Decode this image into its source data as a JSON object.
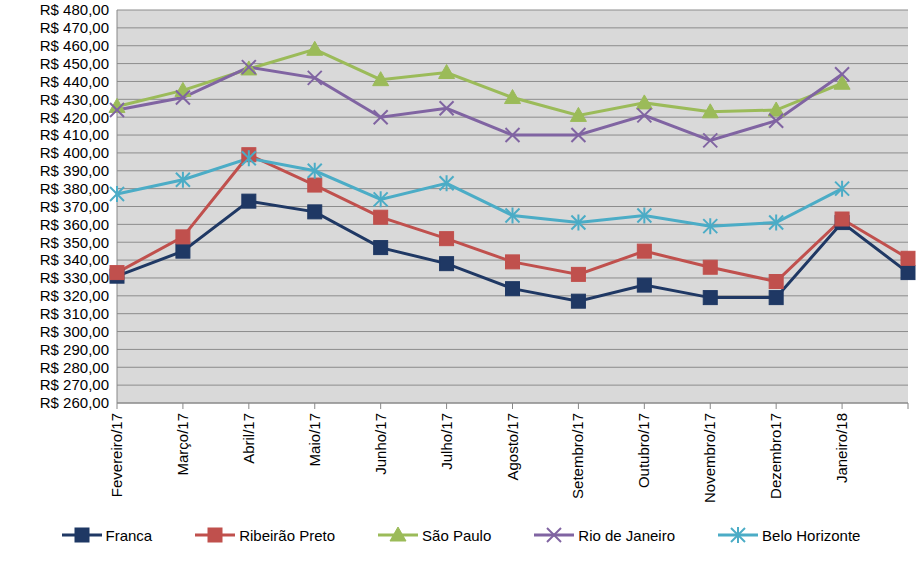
{
  "chart_data": {
    "type": "line",
    "categories": [
      "Fevereiro/17",
      "Março/17",
      "Abril/17",
      "Maio/17",
      "Junho/17",
      "Julho/17",
      "Agosto/17",
      "Setembro/17",
      "Outubro/17",
      "Novembro/17",
      "Dezembro17",
      "Janeiro/18",
      null
    ],
    "series": [
      {
        "name": "Franca",
        "color": "#1f3864",
        "marker": "square",
        "values": [
          331,
          345,
          373,
          367,
          347,
          338,
          324,
          317,
          326,
          319,
          319,
          361,
          333
        ]
      },
      {
        "name": "Ribeirão Preto",
        "color": "#c0504d",
        "marker": "square",
        "values": [
          333,
          353,
          399,
          382,
          364,
          352,
          339,
          332,
          345,
          336,
          328,
          363,
          341
        ]
      },
      {
        "name": "São Paulo",
        "color": "#9bbb59",
        "marker": "triangle",
        "values": [
          426,
          435,
          447,
          458,
          441,
          445,
          431,
          421,
          428,
          423,
          424,
          439,
          null
        ]
      },
      {
        "name": "Rio de Janeiro",
        "color": "#8064a2",
        "marker": "x",
        "values": [
          424,
          431,
          448,
          442,
          420,
          425,
          410,
          410,
          421,
          407,
          418,
          444,
          null
        ]
      },
      {
        "name": "Belo Horizonte",
        "color": "#4bacc6",
        "marker": "star",
        "values": [
          377,
          385,
          397,
          390,
          374,
          383,
          365,
          361,
          365,
          359,
          361,
          380,
          null
        ]
      }
    ],
    "ylim": [
      260,
      480
    ],
    "yticks": [
      {
        "value": 260,
        "label": "R$ 260,00"
      },
      {
        "value": 270,
        "label": "R$ 270,00"
      },
      {
        "value": 280,
        "label": "R$ 280,00"
      },
      {
        "value": 290,
        "label": "R$ 290,00"
      },
      {
        "value": 300,
        "label": "R$ 300,00"
      },
      {
        "value": 310,
        "label": "R$ 310,00"
      },
      {
        "value": 320,
        "label": "R$ 320,00"
      },
      {
        "value": 330,
        "label": "R$ 330,00"
      },
      {
        "value": 340,
        "label": "R$ 340,00"
      },
      {
        "value": 350,
        "label": "R$ 350,00"
      },
      {
        "value": 360,
        "label": "R$ 360,00"
      },
      {
        "value": 370,
        "label": "R$ 370,00"
      },
      {
        "value": 380,
        "label": "R$ 380,00"
      },
      {
        "value": 390,
        "label": "R$ 390,00"
      },
      {
        "value": 400,
        "label": "R$ 400,00"
      },
      {
        "value": 410,
        "label": "R$ 410,00"
      },
      {
        "value": 420,
        "label": "R$ 420,00"
      },
      {
        "value": 430,
        "label": "R$ 430,00"
      },
      {
        "value": 440,
        "label": "R$ 440,00"
      },
      {
        "value": 450,
        "label": "R$ 450,00"
      },
      {
        "value": 460,
        "label": "R$ 460,00"
      },
      {
        "value": 470,
        "label": "R$ 470,00"
      },
      {
        "value": 480,
        "label": "R$ 480,00"
      }
    ],
    "grid": true,
    "legend": "bottom"
  }
}
